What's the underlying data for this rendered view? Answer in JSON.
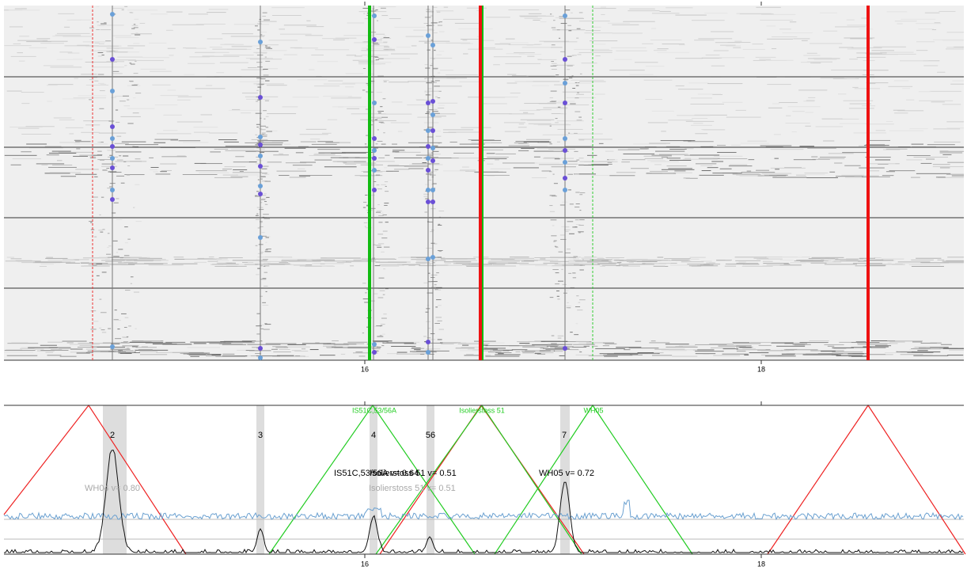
{
  "top_panel": {
    "x_ticks": [
      "16",
      "18"
    ]
  },
  "bottom_panel": {
    "x_ticks": [
      "16",
      "18"
    ],
    "peak_labels": [
      "2",
      "3",
      "4",
      "56",
      "7"
    ],
    "marker_labels": [
      "IS51C,53/56A",
      "Isolierstoss 51",
      "WH05"
    ],
    "value_labels": [
      "IS51C,53/56A v= 0.64",
      "Isolierstoss 51 v= 0.51",
      "WH05 v= 0.72"
    ],
    "faded_labels": [
      "WH04 v= 0.80",
      "Isolierstoss 51 v= 0.51"
    ]
  }
}
